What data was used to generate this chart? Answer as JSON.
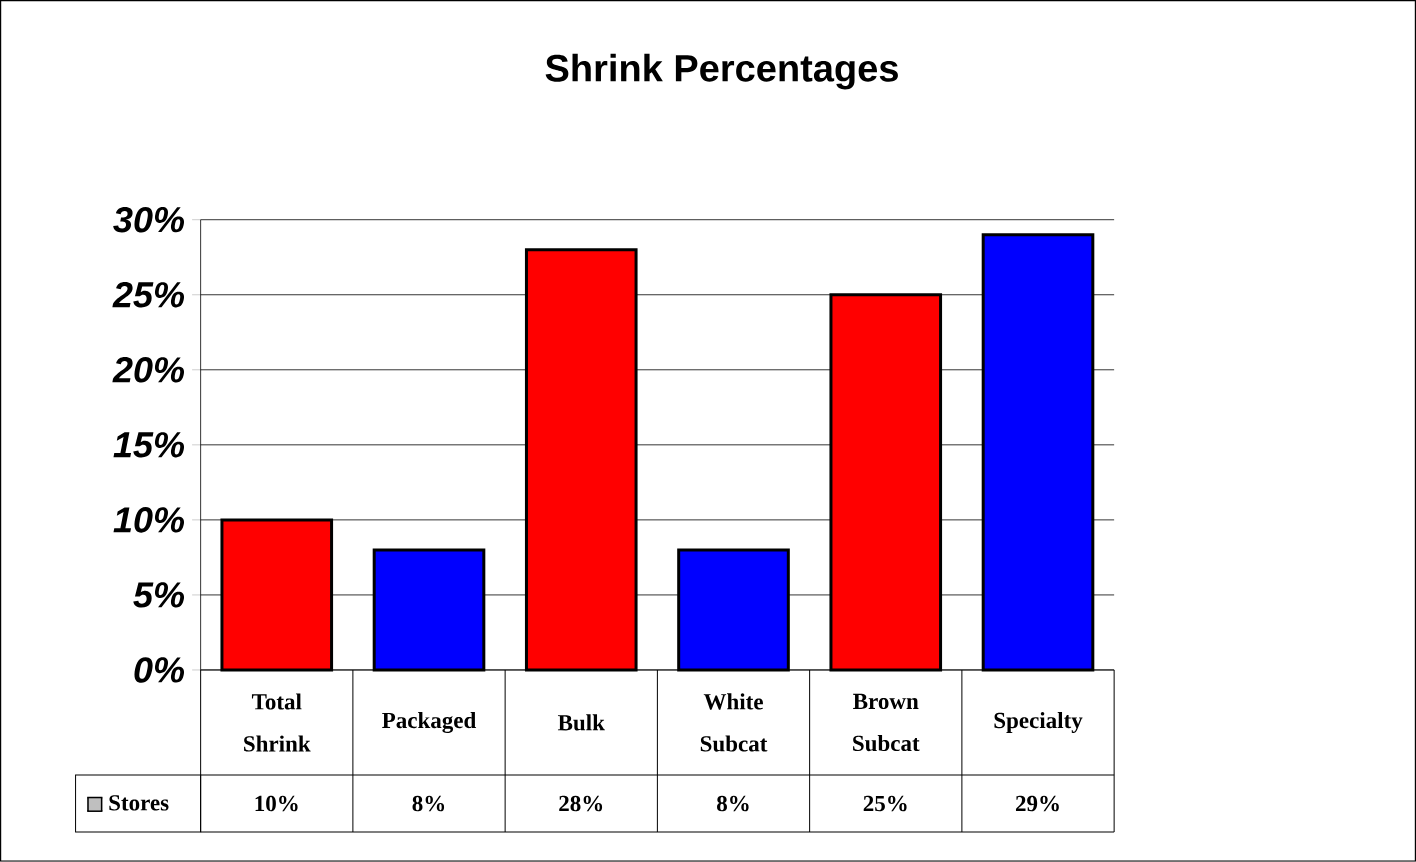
{
  "chart_data": {
    "type": "bar",
    "title": "Shrink Percentages",
    "categories": [
      "Total Shrink",
      "Packaged",
      "Bulk",
      "White Subcat",
      "Brown Subcat",
      "Specialty"
    ],
    "series": [
      {
        "name": "Stores",
        "values": [
          10,
          8,
          28,
          8,
          25,
          29
        ],
        "colors": [
          "#ff0000",
          "#0000ff",
          "#ff0000",
          "#0000ff",
          "#ff0000",
          "#0000ff"
        ],
        "value_labels": [
          "10%",
          "8%",
          "28%",
          "8%",
          "25%",
          "29%"
        ]
      }
    ],
    "ylim": [
      0,
      30
    ],
    "yticks": [
      {
        "value": 0,
        "label": "0%"
      },
      {
        "value": 5,
        "label": "5%"
      },
      {
        "value": 10,
        "label": "10%"
      },
      {
        "value": 15,
        "label": "15%"
      },
      {
        "value": 20,
        "label": "20%"
      },
      {
        "value": 25,
        "label": "25%"
      },
      {
        "value": 30,
        "label": "30%"
      }
    ],
    "grid": "y",
    "legend": "bottom"
  }
}
